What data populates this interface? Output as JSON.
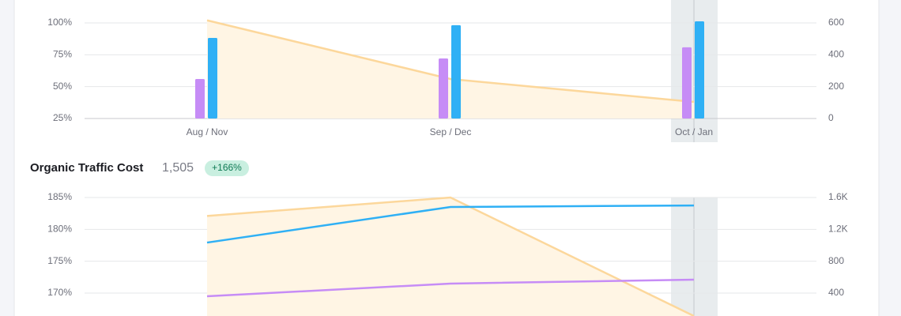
{
  "chart_data": [
    {
      "type": "combo",
      "categories": [
        "Aug / Nov",
        "Sep / Dec",
        "Oct / Jan"
      ],
      "ylim": [
        25,
        100
      ],
      "yticks": [
        {
          "value": 25,
          "label": "25%"
        },
        {
          "value": 50,
          "label": "50%"
        },
        {
          "value": 75,
          "label": "75%"
        },
        {
          "value": 100,
          "label": "100%"
        }
      ],
      "y2lim": [
        0,
        600
      ],
      "y2ticks": [
        0,
        200,
        400,
        600
      ],
      "grid": true,
      "highlight": 2,
      "series": [
        {
          "type": "area",
          "color": "#fcd79b",
          "values": [
            102,
            56,
            38
          ]
        },
        {
          "type": "bar",
          "axis": "y2",
          "color": "#c68cf6",
          "values": [
            248,
            377,
            447
          ]
        },
        {
          "type": "bar",
          "axis": "y2",
          "color": "#2fb0f5",
          "values": [
            506,
            586,
            610
          ]
        }
      ]
    },
    {
      "type": "combo",
      "title": "Organic Traffic Cost",
      "total": "1,505",
      "change": "+166%",
      "ylim": [
        165,
        185
      ],
      "yticks": [
        {
          "value": 170,
          "label": "170%"
        },
        {
          "value": 175,
          "label": "175%"
        },
        {
          "value": 180,
          "label": "180%"
        },
        {
          "value": 185,
          "label": "185%"
        }
      ],
      "y2lim": [
        0,
        1600
      ],
      "y2ticks": [
        400,
        800,
        {
          "value": 1200,
          "label": "1.2K"
        },
        {
          "value": 1600,
          "label": "1.6K"
        }
      ],
      "grid": true,
      "highlight": 2,
      "series": [
        {
          "type": "area",
          "color": "#fcd79b",
          "values": [
            182.1,
            185,
            166.4
          ]
        },
        {
          "type": "line",
          "axis": "y2",
          "color": "#2fb0f5",
          "values": [
            1034,
            1481,
            1500
          ]
        },
        {
          "type": "line",
          "axis": "y2",
          "color": "#c68cf6",
          "values": [
            360,
            519,
            568
          ]
        }
      ]
    }
  ]
}
